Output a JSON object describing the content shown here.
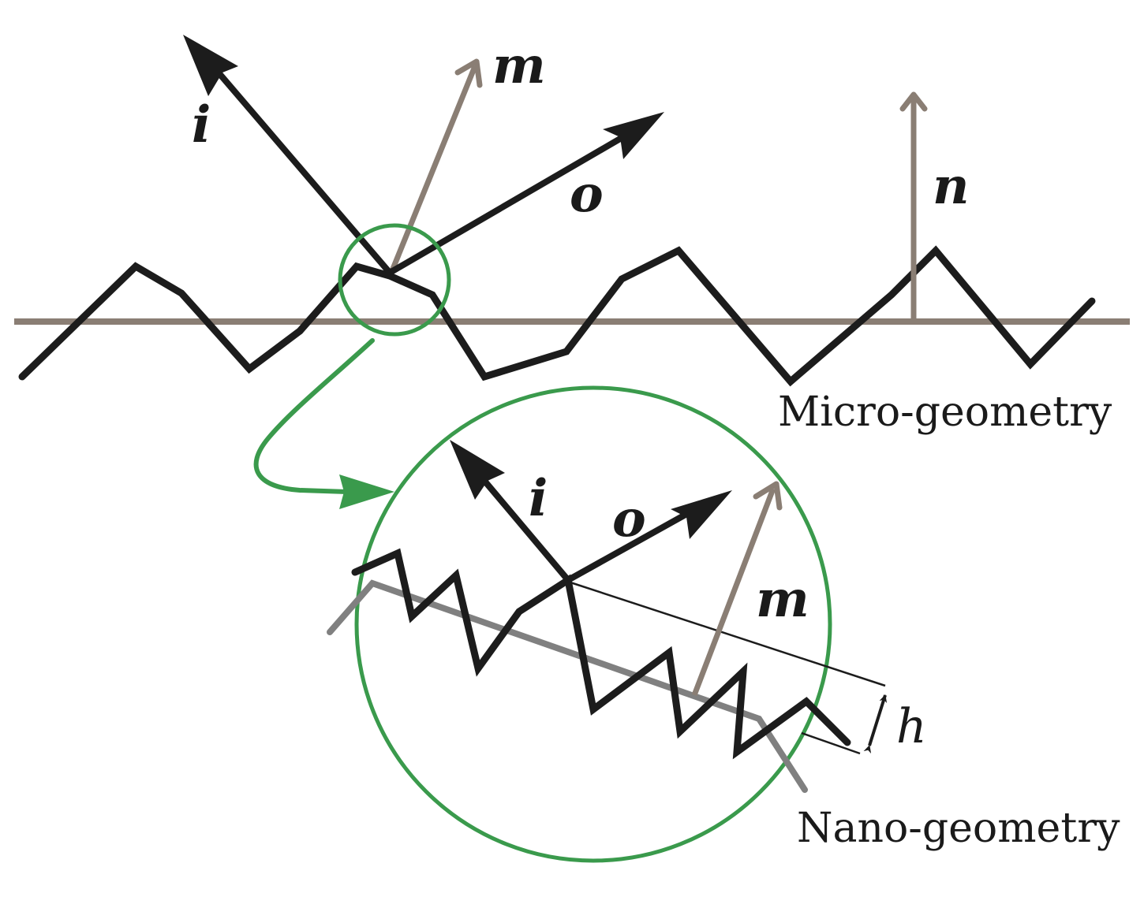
{
  "colors": {
    "surface": "#1c1c1c",
    "normal": "#8a7e74",
    "zoom": "#3a9a4c",
    "nano_base": "#808080",
    "text": "#1a1a1a"
  },
  "micro": {
    "incident_label": "i",
    "outgoing_label": "o",
    "microfacet_normal_label": "m",
    "macro_normal_label": "n",
    "caption": "Micro-geometry"
  },
  "nano": {
    "incident_label": "i",
    "outgoing_label": "o",
    "microfacet_normal_label": "m",
    "height_label": "h",
    "caption": "Nano-geometry"
  }
}
